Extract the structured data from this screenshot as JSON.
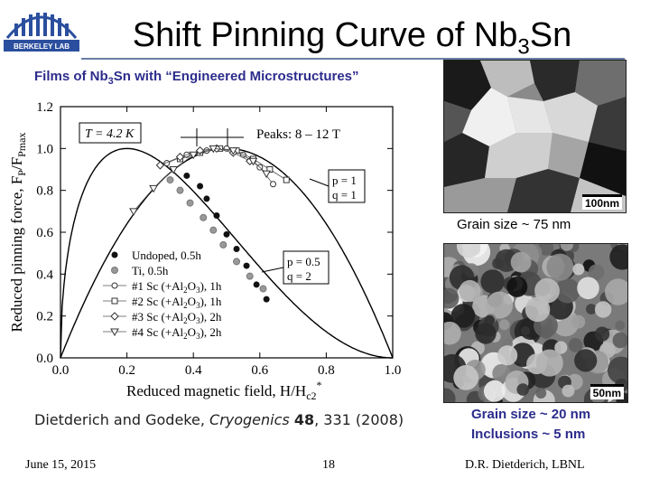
{
  "header": {
    "title_prefix": "Shift Pinning Curve of Nb",
    "title_sub": "3",
    "title_suffix": "Sn",
    "logo_text": "BERKELEY LAB",
    "subtitle_prefix": "Films of Nb",
    "subtitle_sub": "3",
    "subtitle_suffix": "Sn with “Engineered Microstructures”"
  },
  "chart_data": {
    "type": "scatter",
    "xlabel": "Reduced magnetic field, H/H",
    "xlabel_sub": "c2",
    "xlabel_sup": "*",
    "ylabel": "Reduced pinning force, F",
    "ylabel_sub1": "P",
    "ylabel_mid": "/F",
    "ylabel_sub2": "Pmax",
    "xlim": [
      0.0,
      1.0
    ],
    "ylim": [
      0.0,
      1.2
    ],
    "xticks": [
      "0.0",
      "0.2",
      "0.4",
      "0.6",
      "0.8",
      "1.0"
    ],
    "yticks": [
      "0.0",
      "0.2",
      "0.4",
      "0.6",
      "0.8",
      "1.0",
      "1.2"
    ],
    "annotations": {
      "temperature": "T = 4.2 K",
      "peaks": "Peaks: 8 – 12 T",
      "curve1_p": "p = 1",
      "curve1_q": "q = 1",
      "curve2_p": "p = 0.5",
      "curve2_q": "q = 2"
    },
    "curves": [
      {
        "label": "p = 1, q = 1",
        "p": 1,
        "q": 1
      },
      {
        "label": "p = 0.5, q = 2",
        "p": 0.5,
        "q": 2
      }
    ],
    "series": [
      {
        "name": "Undoped, 0.5h",
        "marker": "filled-circle",
        "color": "#111111",
        "x": [
          0.38,
          0.42,
          0.44,
          0.47,
          0.5,
          0.53,
          0.56,
          0.59,
          0.62
        ],
        "y": [
          0.87,
          0.82,
          0.76,
          0.68,
          0.59,
          0.52,
          0.44,
          0.35,
          0.28
        ]
      },
      {
        "name": "Ti, 0.5h",
        "marker": "gray-circle",
        "color": "#999999",
        "x": [
          0.33,
          0.36,
          0.39,
          0.43,
          0.46,
          0.49,
          0.53,
          0.57,
          0.61
        ],
        "y": [
          0.85,
          0.8,
          0.74,
          0.67,
          0.61,
          0.54,
          0.46,
          0.39,
          0.33
        ]
      },
      {
        "name": "#1 Sc (+Al",
        "name_sub": "2",
        "name_end": "O",
        "name_sub2": "3",
        "name_tail": "), 1h",
        "marker": "open-circle-line",
        "color": "#333333",
        "x": [
          0.32,
          0.38,
          0.44,
          0.5,
          0.55,
          0.6,
          0.64
        ],
        "y": [
          0.93,
          0.97,
          0.99,
          1.0,
          0.97,
          0.91,
          0.83
        ]
      },
      {
        "name": "#2 Sc (+Al",
        "name_sub": "2",
        "name_end": "O",
        "name_sub2": "3",
        "name_tail": "), 1h",
        "marker": "open-square-line",
        "color": "#333333",
        "x": [
          0.36,
          0.42,
          0.48,
          0.53,
          0.58,
          0.63,
          0.68
        ],
        "y": [
          0.95,
          0.98,
          1.0,
          0.99,
          0.95,
          0.9,
          0.85
        ]
      },
      {
        "name": "#3 Sc (+Al",
        "name_sub": "2",
        "name_end": "O",
        "name_sub2": "3",
        "name_tail": "), 2h",
        "marker": "open-diamond-line",
        "color": "#333333",
        "x": [
          0.3,
          0.36,
          0.42,
          0.47,
          0.52,
          0.57
        ],
        "y": [
          0.92,
          0.96,
          0.99,
          1.0,
          0.98,
          0.94
        ]
      },
      {
        "name": "#4 Sc (+Al",
        "name_sub": "2",
        "name_end": "O",
        "name_sub2": "3",
        "name_tail": "), 2h",
        "marker": "open-triangle-line",
        "color": "#333333",
        "x": [
          0.22,
          0.28,
          0.34,
          0.4,
          0.46,
          0.52,
          0.58,
          0.62
        ],
        "y": [
          0.7,
          0.81,
          0.9,
          0.97,
          1.0,
          0.99,
          0.94,
          0.88
        ]
      }
    ],
    "legend_position": "lower-left"
  },
  "citation": {
    "authors": "Dietderich and Godeke, ",
    "journal": "Cryogenics",
    "volume": "48",
    "rest": ", 331 (2008)"
  },
  "images": {
    "tem1_scale": "100nm",
    "tem2_scale": "50nm",
    "grain1": "Grain size ~ 75 nm",
    "grain2": "Grain size ~ 20 nm",
    "grain3": "Inclusions ~ 5 nm"
  },
  "footer": {
    "date": "June 15, 2015",
    "page": "18",
    "author": "D.R. Dietderich, LBNL"
  }
}
